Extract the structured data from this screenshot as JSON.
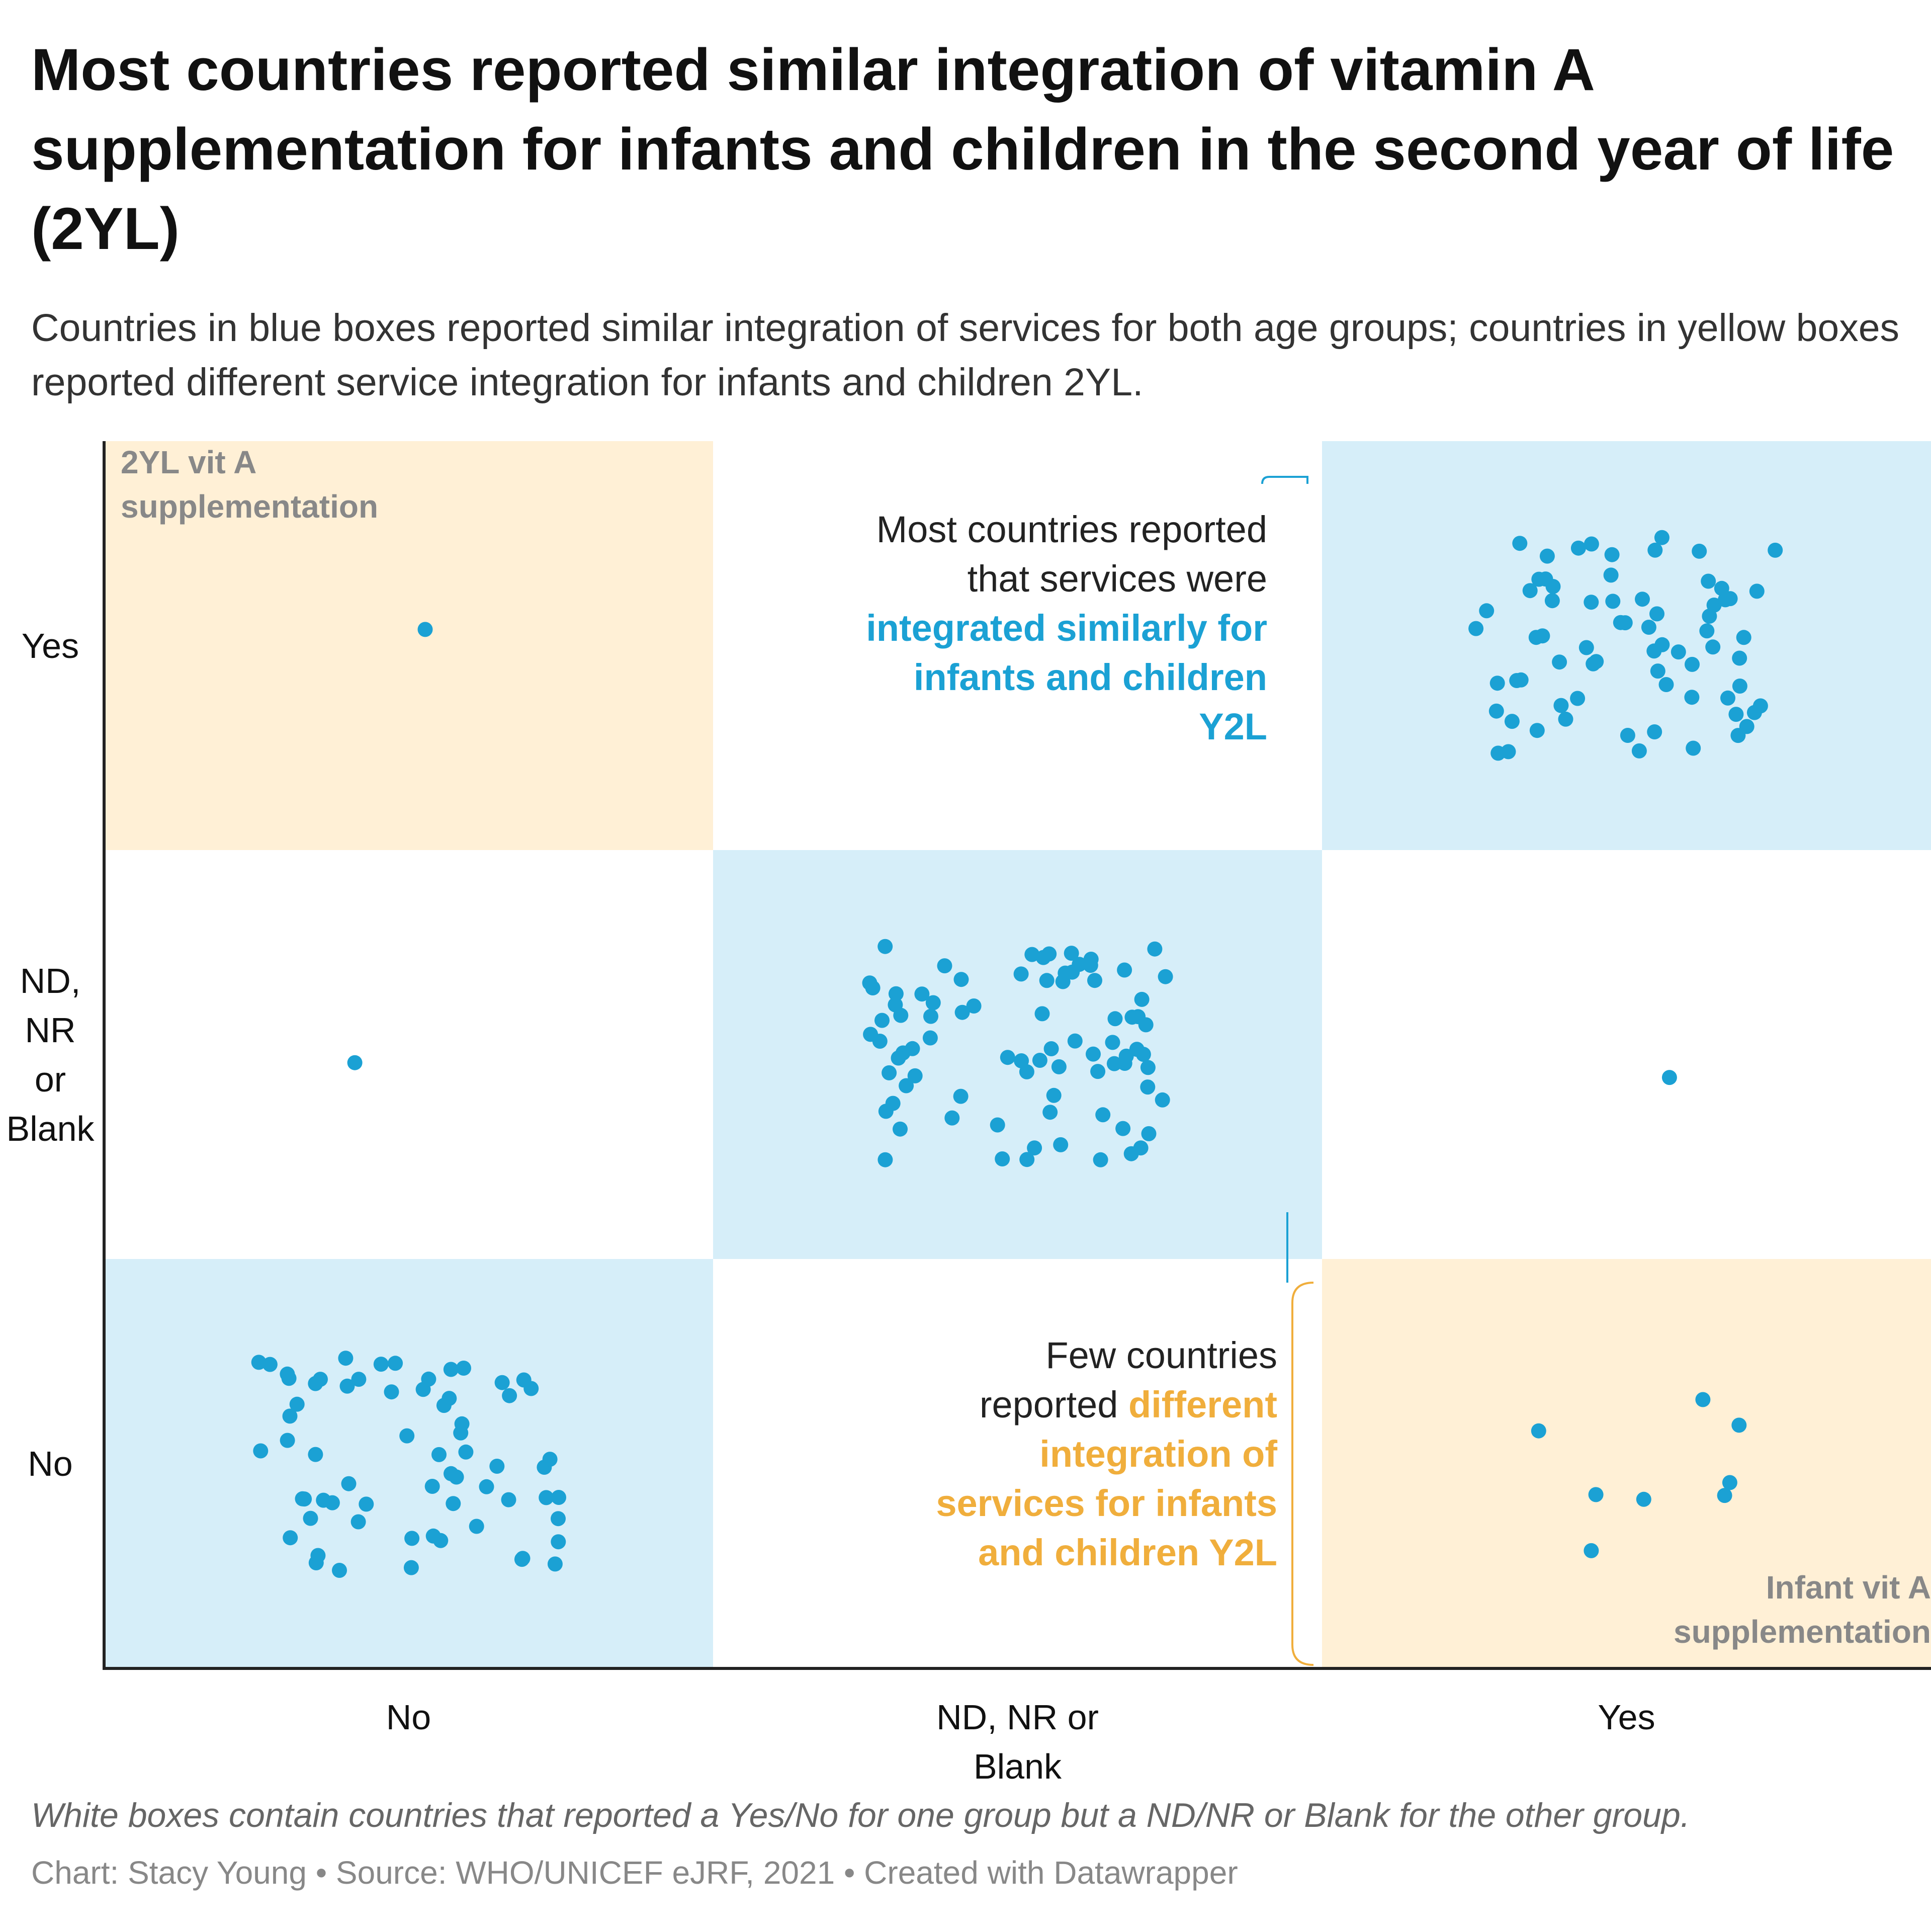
{
  "title": "Most countries reported similar integration of vitamin A supplementation for infants and children in the second year of life (2YL)",
  "subtitle": "Countries in blue boxes reported similar integration of services for both age groups; countries in yellow boxes reported different service integration for infants and children 2YL.",
  "corner_labels": {
    "y_axis": "2YL vit A supplementation",
    "x_axis": "Infant vit A supplementation"
  },
  "annotations": {
    "similar": {
      "plain": "Most countries reported that services were",
      "highlight": "integrated similarly for infants and children Y2L"
    },
    "different": {
      "plain": "Few countries reported",
      "highlight": "different integration of services for infants and children Y2L"
    }
  },
  "note": "White boxes contain countries that reported a Yes/No for one group but a ND/NR or Blank for the other group.",
  "byline": "Chart: Stacy Young • Source: WHO/UNICEF eJRF, 2021 • Created with Datawrapper",
  "colors": {
    "dot": "#1ba1d4",
    "blue_box": "#d6eef9",
    "yellow_box": "#fff0d6",
    "highlight_blue": "#1ba1d4",
    "highlight_orange": "#f0ae3c",
    "axis": "#222222"
  },
  "chart_data": {
    "type": "scatter",
    "title": "",
    "xlabel": "Infant vit A supplementation",
    "ylabel": "2YL vit A supplementation",
    "x_categories": [
      "No",
      "ND, NR or Blank",
      "Yes"
    ],
    "y_categories": [
      "No",
      "ND, NR or Blank",
      "Yes"
    ],
    "cells": [
      {
        "x": "No",
        "y": "Yes",
        "count": 1,
        "box": "yellow"
      },
      {
        "x": "ND, NR or Blank",
        "y": "Yes",
        "count": 0,
        "box": "white"
      },
      {
        "x": "Yes",
        "y": "Yes",
        "count": 70,
        "box": "blue"
      },
      {
        "x": "No",
        "y": "ND, NR or Blank",
        "count": 1,
        "box": "white"
      },
      {
        "x": "ND, NR or Blank",
        "y": "ND, NR or Blank",
        "count": 82,
        "box": "blue"
      },
      {
        "x": "Yes",
        "y": "ND, NR or Blank",
        "count": 1,
        "box": "white"
      },
      {
        "x": "No",
        "y": "No",
        "count": 65,
        "box": "blue"
      },
      {
        "x": "ND, NR or Blank",
        "y": "No",
        "count": 0,
        "box": "white"
      },
      {
        "x": "Yes",
        "y": "No",
        "count": 8,
        "box": "yellow"
      }
    ]
  }
}
